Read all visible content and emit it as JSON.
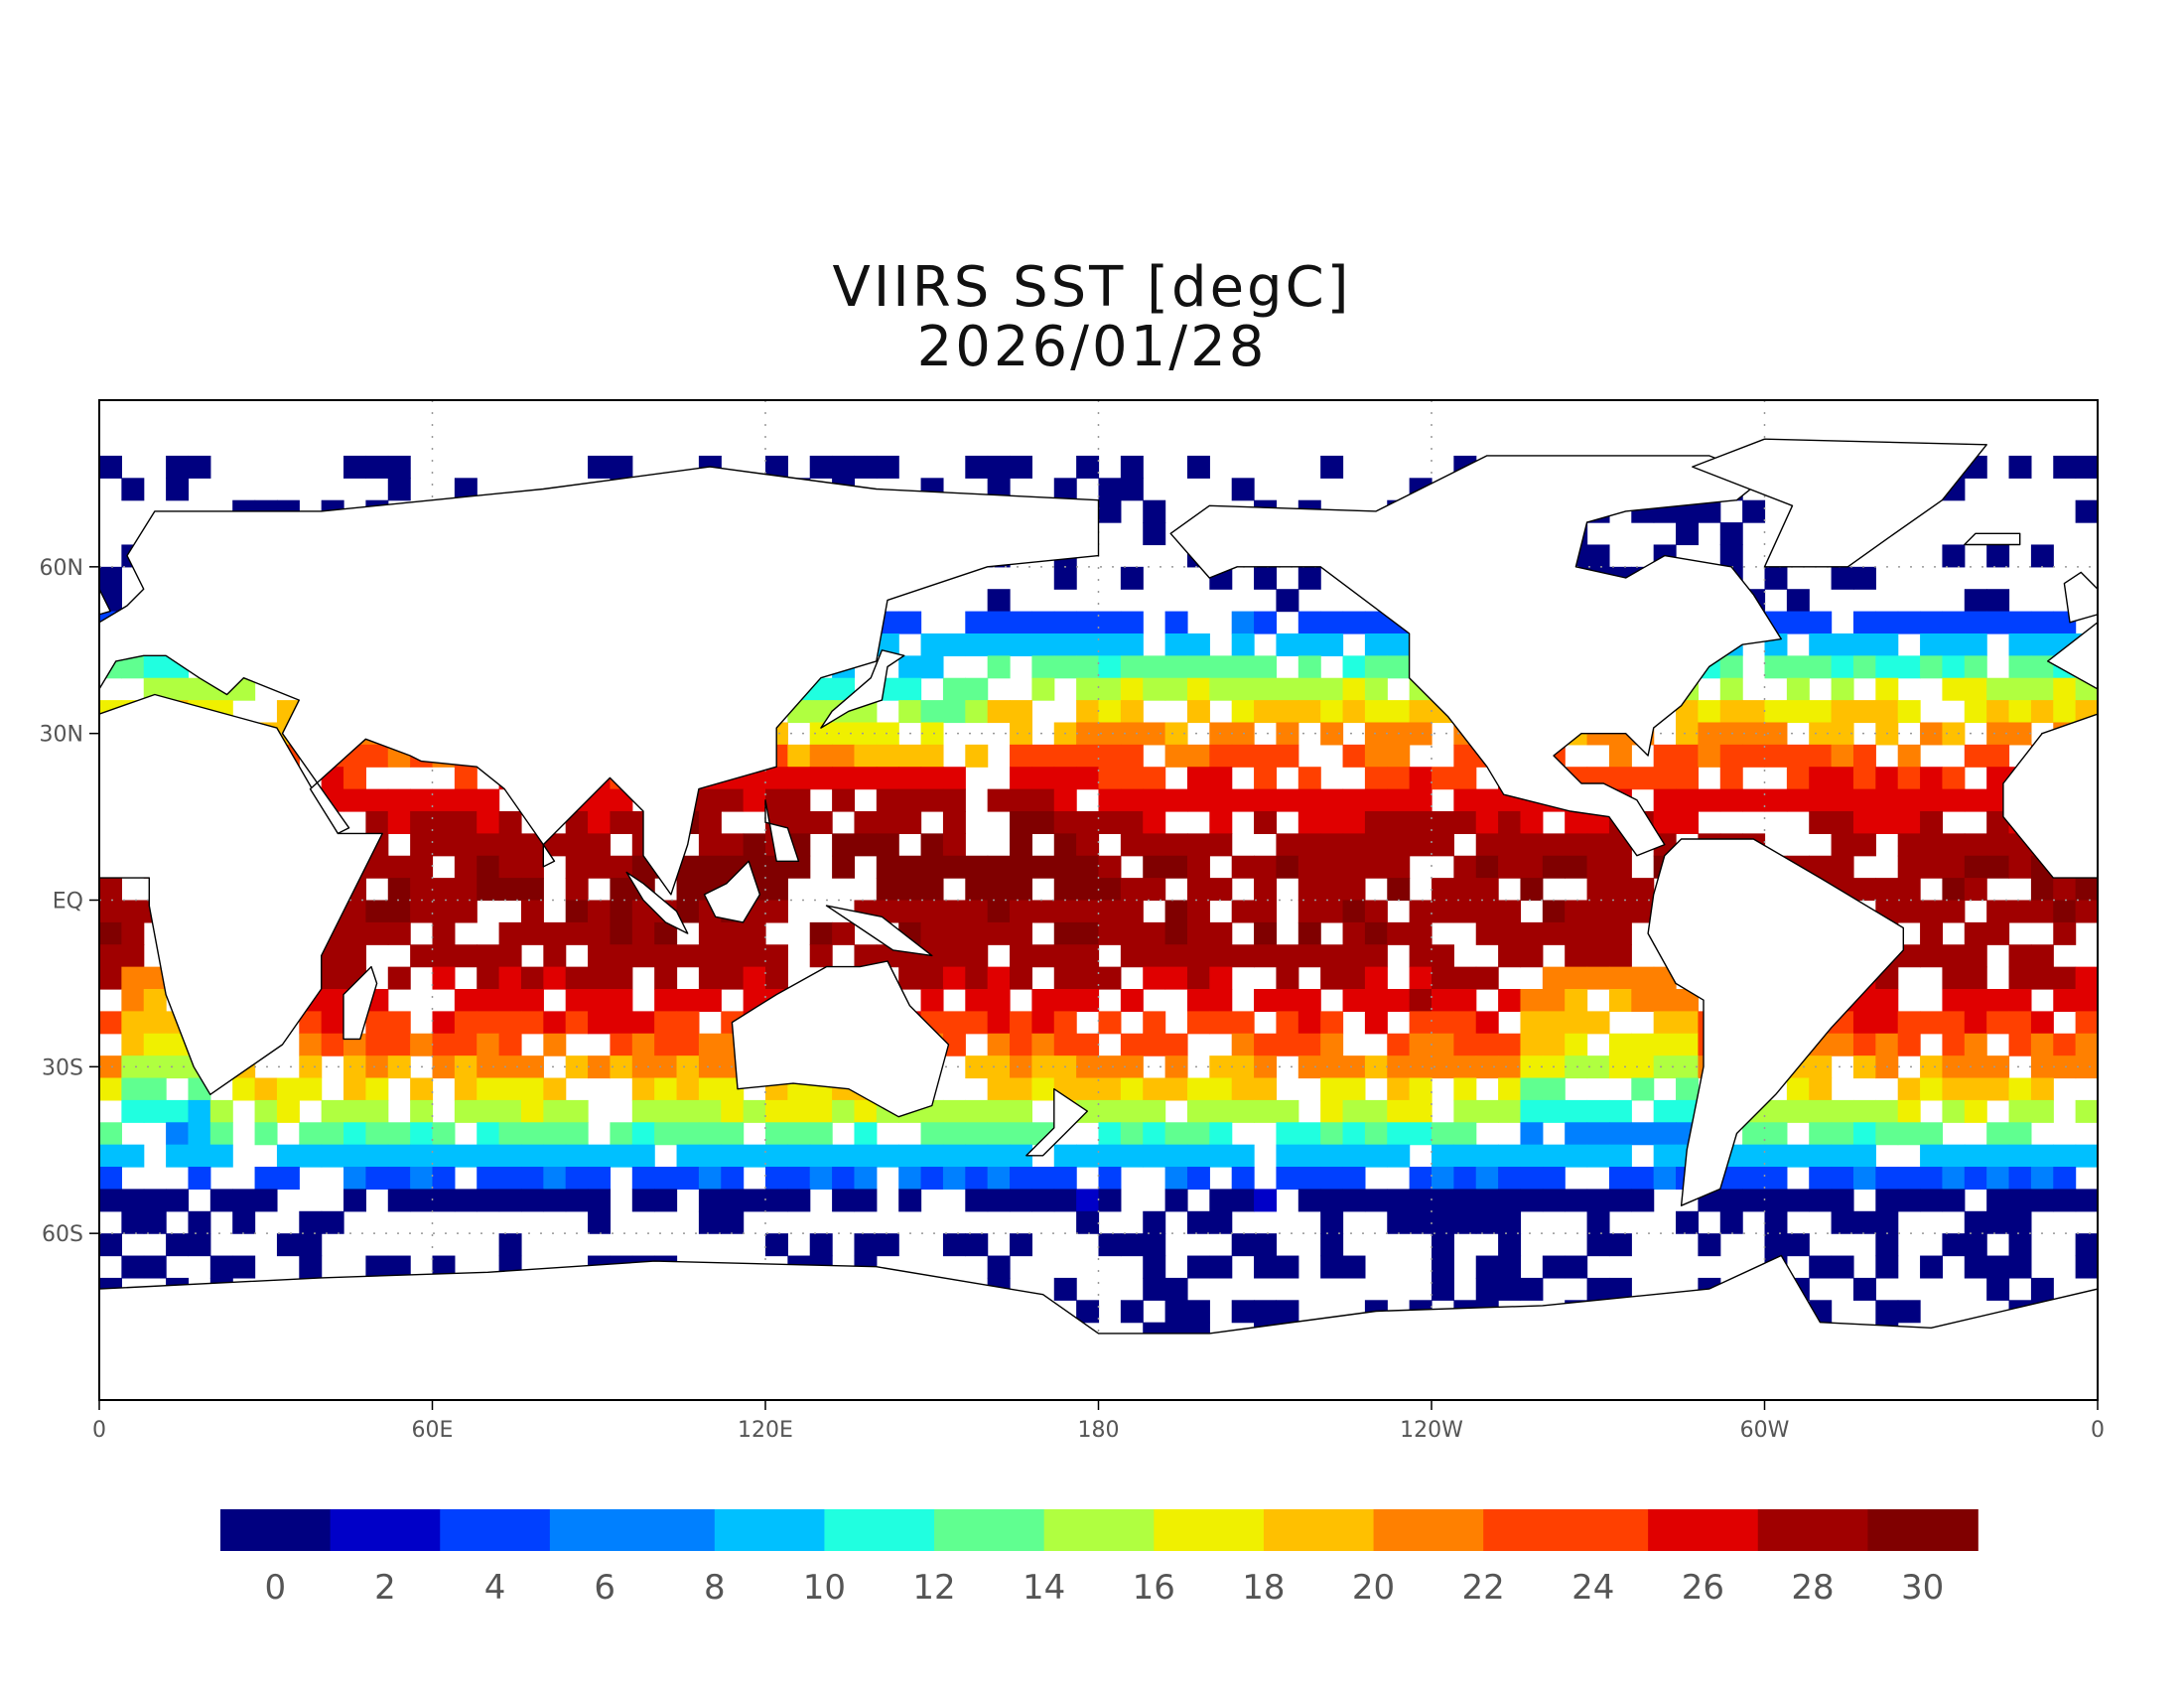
{
  "title": "VIIRS SST [degC]",
  "date": "2026/01/28",
  "map": {
    "projection": "equirectangular",
    "lon_range": [
      0,
      360
    ],
    "lat_range": [
      -90,
      90
    ],
    "grid": "dotted",
    "lon_ticks": [
      "0",
      "60E",
      "120E",
      "180",
      "120W",
      "60W",
      "0"
    ],
    "lat_ticks": [
      "60N",
      "30N",
      "EQ",
      "30S",
      "60S"
    ],
    "land_color": "#ffffff",
    "coastline_color": "#000000"
  },
  "colorbar": {
    "min": -1,
    "max": 31,
    "tick_labels": [
      "0",
      "2",
      "4",
      "6",
      "8",
      "10",
      "12",
      "14",
      "16",
      "18",
      "20",
      "22",
      "24",
      "26",
      "28",
      "30"
    ],
    "colors": [
      "#000080",
      "#0000c8",
      "#0040ff",
      "#0080ff",
      "#00c0ff",
      "#20ffe0",
      "#60ff90",
      "#b0ff40",
      "#f0f000",
      "#ffc000",
      "#ff8000",
      "#ff4000",
      "#e00000",
      "#a00000",
      "#800000"
    ]
  }
}
